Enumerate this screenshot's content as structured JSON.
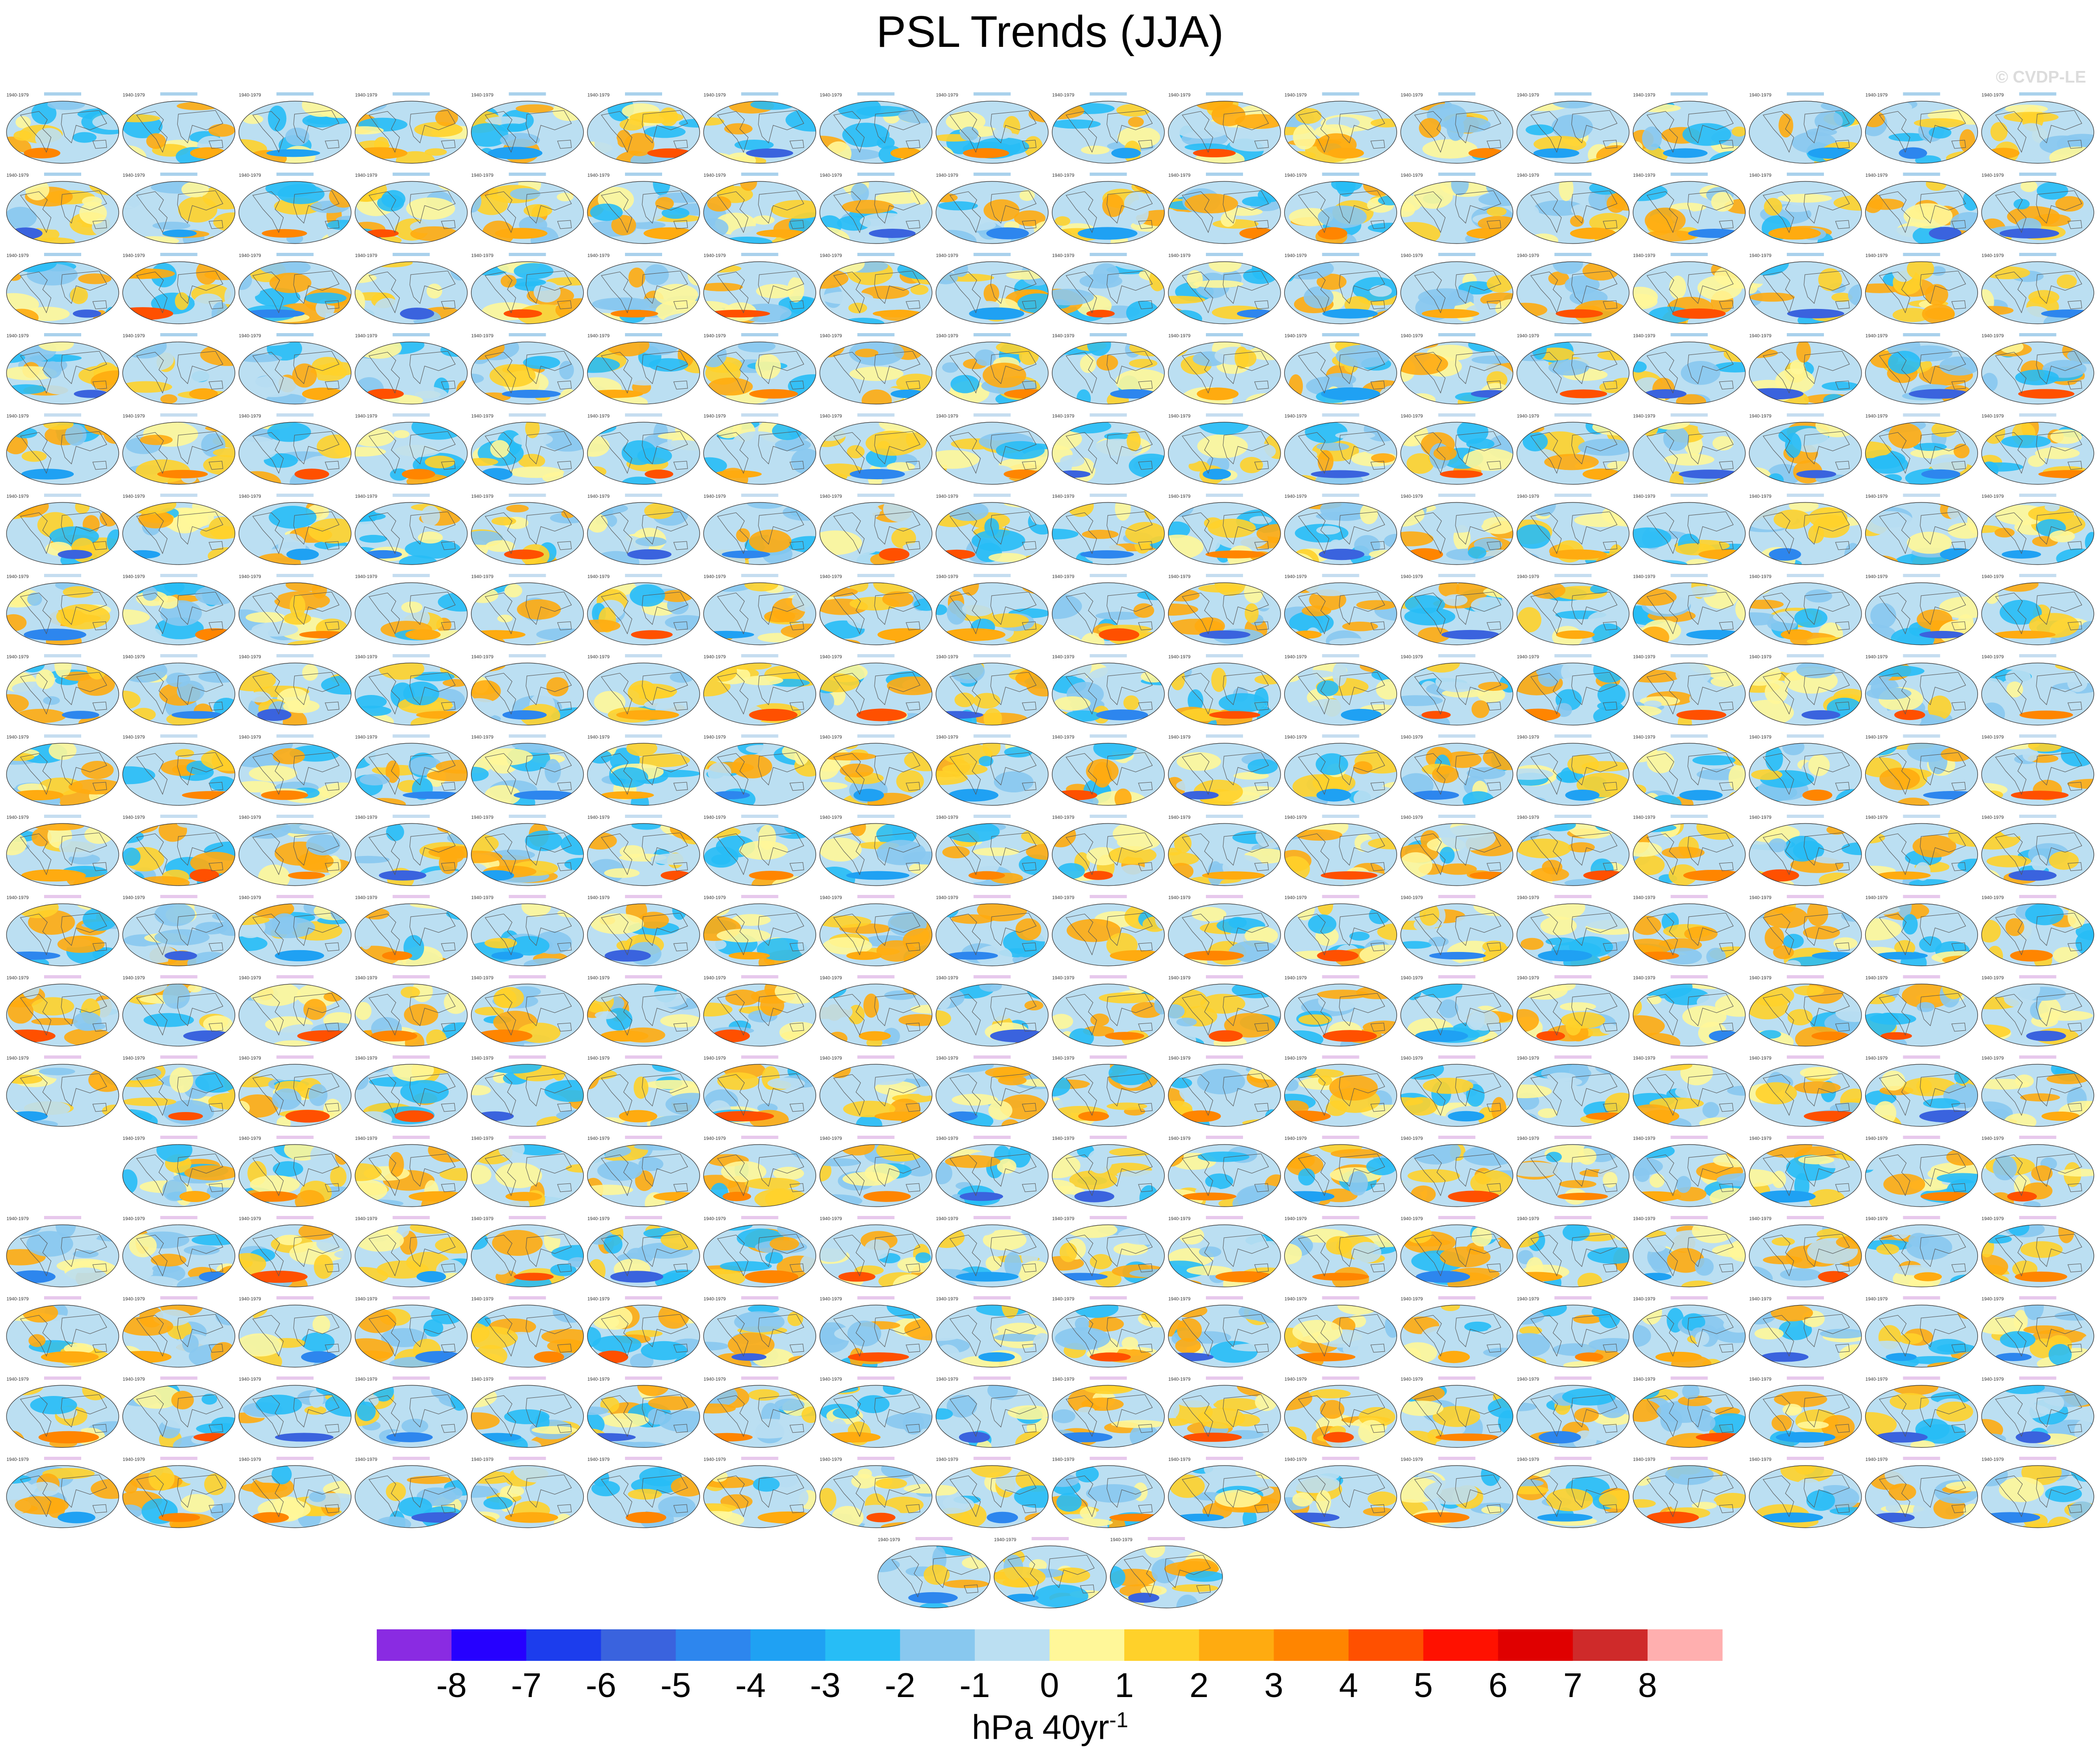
{
  "title": "PSL Trends (JJA)",
  "watermark": "© CVDP-LE",
  "chart_data": {
    "type": "heatmap",
    "title": "PSL Trends (JJA)",
    "description_of_panels": "Grid of small global map panels (Robinson-style projection) of JJA sea level pressure trends for ensemble members",
    "panel_rows": [
      18,
      18,
      18,
      18,
      18,
      18,
      18,
      18,
      18,
      18,
      18,
      18,
      18,
      17,
      18,
      18,
      18,
      18,
      3
    ],
    "panel_row_offsets": [
      0,
      0,
      0,
      0,
      0,
      0,
      0,
      0,
      0,
      0,
      0,
      0,
      0,
      1,
      0,
      0,
      0,
      0,
      7.5
    ],
    "panel_period_label": "1940-1979",
    "colorbar": {
      "levels": [
        -8,
        -7,
        -6,
        -5,
        -4,
        -3,
        -2,
        -1,
        0,
        1,
        2,
        3,
        4,
        5,
        6,
        7,
        8
      ],
      "tick_labels": [
        "-8",
        "-7",
        "-6",
        "-5",
        "-4",
        "-3",
        "-2",
        "-1",
        "0",
        "1",
        "2",
        "3",
        "4",
        "5",
        "6",
        "7",
        "8"
      ],
      "colors": [
        "#8a2be2",
        "#2600ff",
        "#1c3ded",
        "#3a63de",
        "#2d86ee",
        "#1fa1f3",
        "#27bdf6",
        "#88c8ef",
        "#bbdff2",
        "#fff799",
        "#ffd12a",
        "#ffab10",
        "#ff8500",
        "#ff5000",
        "#ff1100",
        "#e00000",
        "#cf2a2a",
        "#ffafaf"
      ],
      "units": "hPa 40yr",
      "units_exponent": "-1"
    }
  }
}
